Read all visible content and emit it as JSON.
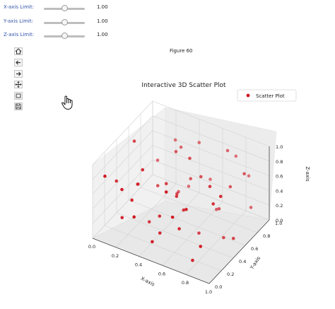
{
  "sliders": [
    {
      "label": "X-axis Limit:",
      "value": "1.00",
      "level": 0.5
    },
    {
      "label": "Y-axis Limit:",
      "value": "1.00",
      "level": 0.5
    },
    {
      "label": "Z-axis Limit:",
      "value": "1.00",
      "level": 0.5
    }
  ],
  "toolbar": {
    "home_icon": "home-icon",
    "back_icon": "back-arrow-icon",
    "forward_icon": "forward-arrow-icon",
    "pan_icon": "pan-icon",
    "zoom_icon": "zoom-rectangle-icon",
    "save_icon": "save-icon"
  },
  "figure_label": "Figure 60",
  "chart_data": {
    "type": "scatter",
    "title": "Interactive 3D Scatter Plot",
    "xlabel": "X-axis",
    "ylabel": "Y-axis",
    "zlabel": "Z-axis",
    "xlim": [
      0,
      1
    ],
    "ylim": [
      0,
      1
    ],
    "zlim": [
      0,
      1
    ],
    "x_ticks": [
      "0.0",
      "0.2",
      "0.4",
      "0.6",
      "0.8",
      "1.0"
    ],
    "y_ticks": [
      "0.0",
      "0.2",
      "0.4",
      "0.6",
      "0.8",
      "1.0"
    ],
    "z_ticks": [
      "0.0",
      "0.2",
      "0.4",
      "0.6",
      "0.8",
      "1.0"
    ],
    "legend": {
      "label": "Scatter Plot",
      "placement": "top-right"
    },
    "color": "#d0141e",
    "grid": true,
    "points": [
      [
        0.05,
        0.3,
        0.55
      ],
      [
        0.12,
        0.85,
        0.4
      ],
      [
        0.2,
        0.1,
        0.7
      ],
      [
        0.25,
        0.6,
        0.35
      ],
      [
        0.3,
        0.25,
        0.9
      ],
      [
        0.35,
        0.75,
        0.2
      ],
      [
        0.4,
        0.45,
        0.6
      ],
      [
        0.45,
        0.9,
        0.8
      ],
      [
        0.5,
        0.15,
        0.25
      ],
      [
        0.55,
        0.55,
        0.95
      ],
      [
        0.6,
        0.35,
        0.45
      ],
      [
        0.65,
        0.8,
        0.1
      ],
      [
        0.7,
        0.2,
        0.65
      ],
      [
        0.75,
        0.65,
        0.3
      ],
      [
        0.8,
        0.4,
        0.85
      ],
      [
        0.85,
        0.95,
        0.55
      ],
      [
        0.9,
        0.05,
        0.4
      ],
      [
        0.95,
        0.5,
        0.15
      ],
      [
        0.1,
        0.5,
        0.95
      ],
      [
        0.15,
        0.2,
        0.2
      ],
      [
        0.22,
        0.95,
        0.65
      ],
      [
        0.28,
        0.4,
        0.05
      ],
      [
        0.33,
        0.05,
        0.45
      ],
      [
        0.38,
        0.65,
        0.85
      ],
      [
        0.42,
        0.3,
        0.3
      ],
      [
        0.48,
        0.7,
        0.5
      ],
      [
        0.52,
        0.95,
        0.3
      ],
      [
        0.58,
        0.1,
        0.9
      ],
      [
        0.62,
        0.6,
        0.7
      ],
      [
        0.68,
        0.45,
        0.1
      ],
      [
        0.72,
        0.85,
        0.9
      ],
      [
        0.78,
        0.15,
        0.05
      ],
      [
        0.82,
        0.7,
        0.6
      ],
      [
        0.88,
        0.3,
        0.75
      ],
      [
        0.92,
        0.85,
        0.25
      ],
      [
        0.97,
        0.25,
        0.95
      ],
      [
        0.03,
        0.7,
        0.15
      ],
      [
        0.08,
        0.05,
        0.85
      ],
      [
        0.18,
        0.4,
        0.5
      ],
      [
        0.26,
        0.15,
        0.55
      ],
      [
        0.36,
        0.9,
        0.15
      ],
      [
        0.44,
        0.55,
        0.4
      ],
      [
        0.54,
        0.35,
        0.6
      ],
      [
        0.64,
        0.2,
        0.35
      ],
      [
        0.74,
        0.95,
        0.75
      ],
      [
        0.84,
        0.55,
        0.05
      ],
      [
        0.94,
        0.7,
        0.85
      ],
      [
        0.32,
        0.85,
        0.7
      ],
      [
        0.66,
        0.05,
        0.65
      ],
      [
        0.46,
        0.1,
        0.15
      ]
    ]
  }
}
